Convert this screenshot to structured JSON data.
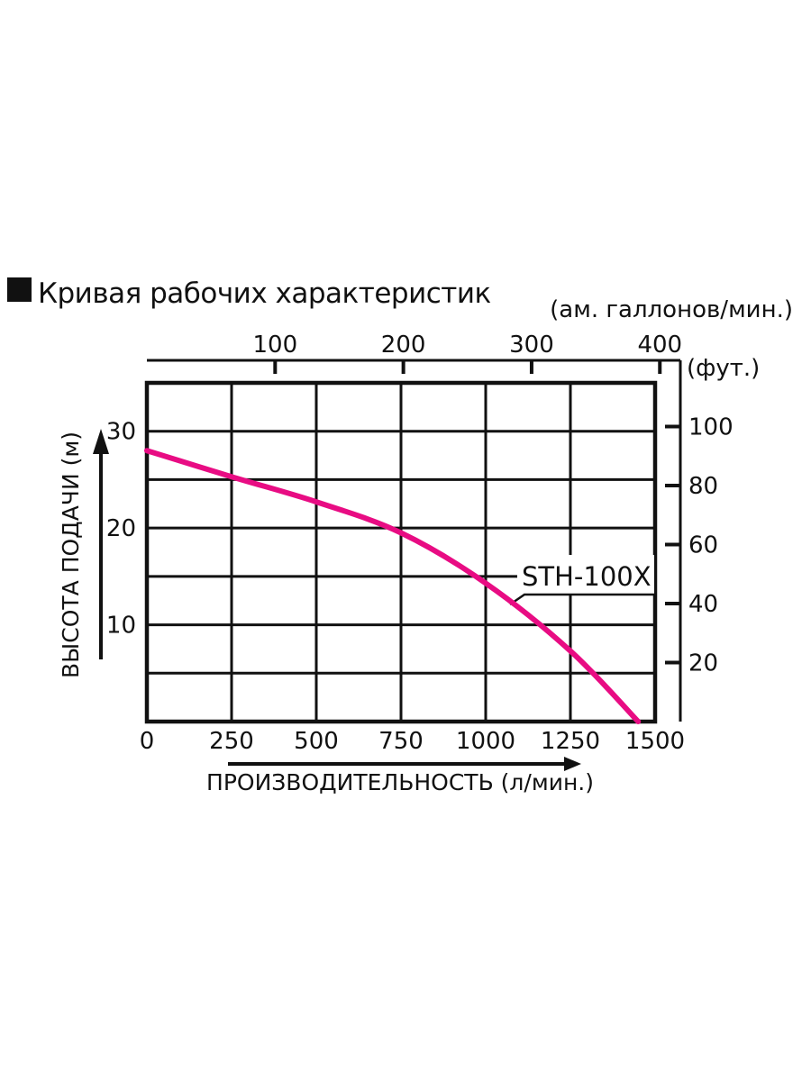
{
  "header": {
    "bullet": "■",
    "title": "Кривая рабочих характеристик"
  },
  "chart_data": {
    "type": "line",
    "title": "Кривая рабочих характеристик",
    "grid": true,
    "legend_position": "inline-label",
    "colors": {
      "axis": "#111111",
      "grid": "#111111",
      "curve": "#e80c83",
      "background": "#ffffff"
    },
    "series": [
      {
        "name": "STH-100X",
        "color": "#e80c83",
        "x_lmin": [
          0,
          250,
          500,
          750,
          1000,
          1250,
          1450
        ],
        "y_m": [
          28,
          25.3,
          22.7,
          19.5,
          14.3,
          7.3,
          0
        ]
      }
    ],
    "x_axis_bottom": {
      "label": "ПРОИЗВОДИТЕЛЬНОСТЬ (л/мин.)",
      "min": 0,
      "max": 1500,
      "tick_step": 250,
      "ticks": [
        0,
        250,
        500,
        750,
        1000,
        1250,
        1500
      ]
    },
    "y_axis_left": {
      "label": "ВЫСОТА ПОДАЧИ (м)",
      "min": 0,
      "max": 35,
      "grid_step": 5,
      "ticks": [
        10,
        20,
        30
      ]
    },
    "x_axis_top": {
      "label": "(ам. галлонов/мин.)",
      "ticks": [
        100,
        200,
        300,
        400
      ],
      "liters_per_gallon": 3.785
    },
    "y_axis_right": {
      "label": "(фут.)",
      "ticks": [
        20,
        40,
        60,
        80,
        100
      ],
      "meters_per_foot": 0.3048
    }
  }
}
